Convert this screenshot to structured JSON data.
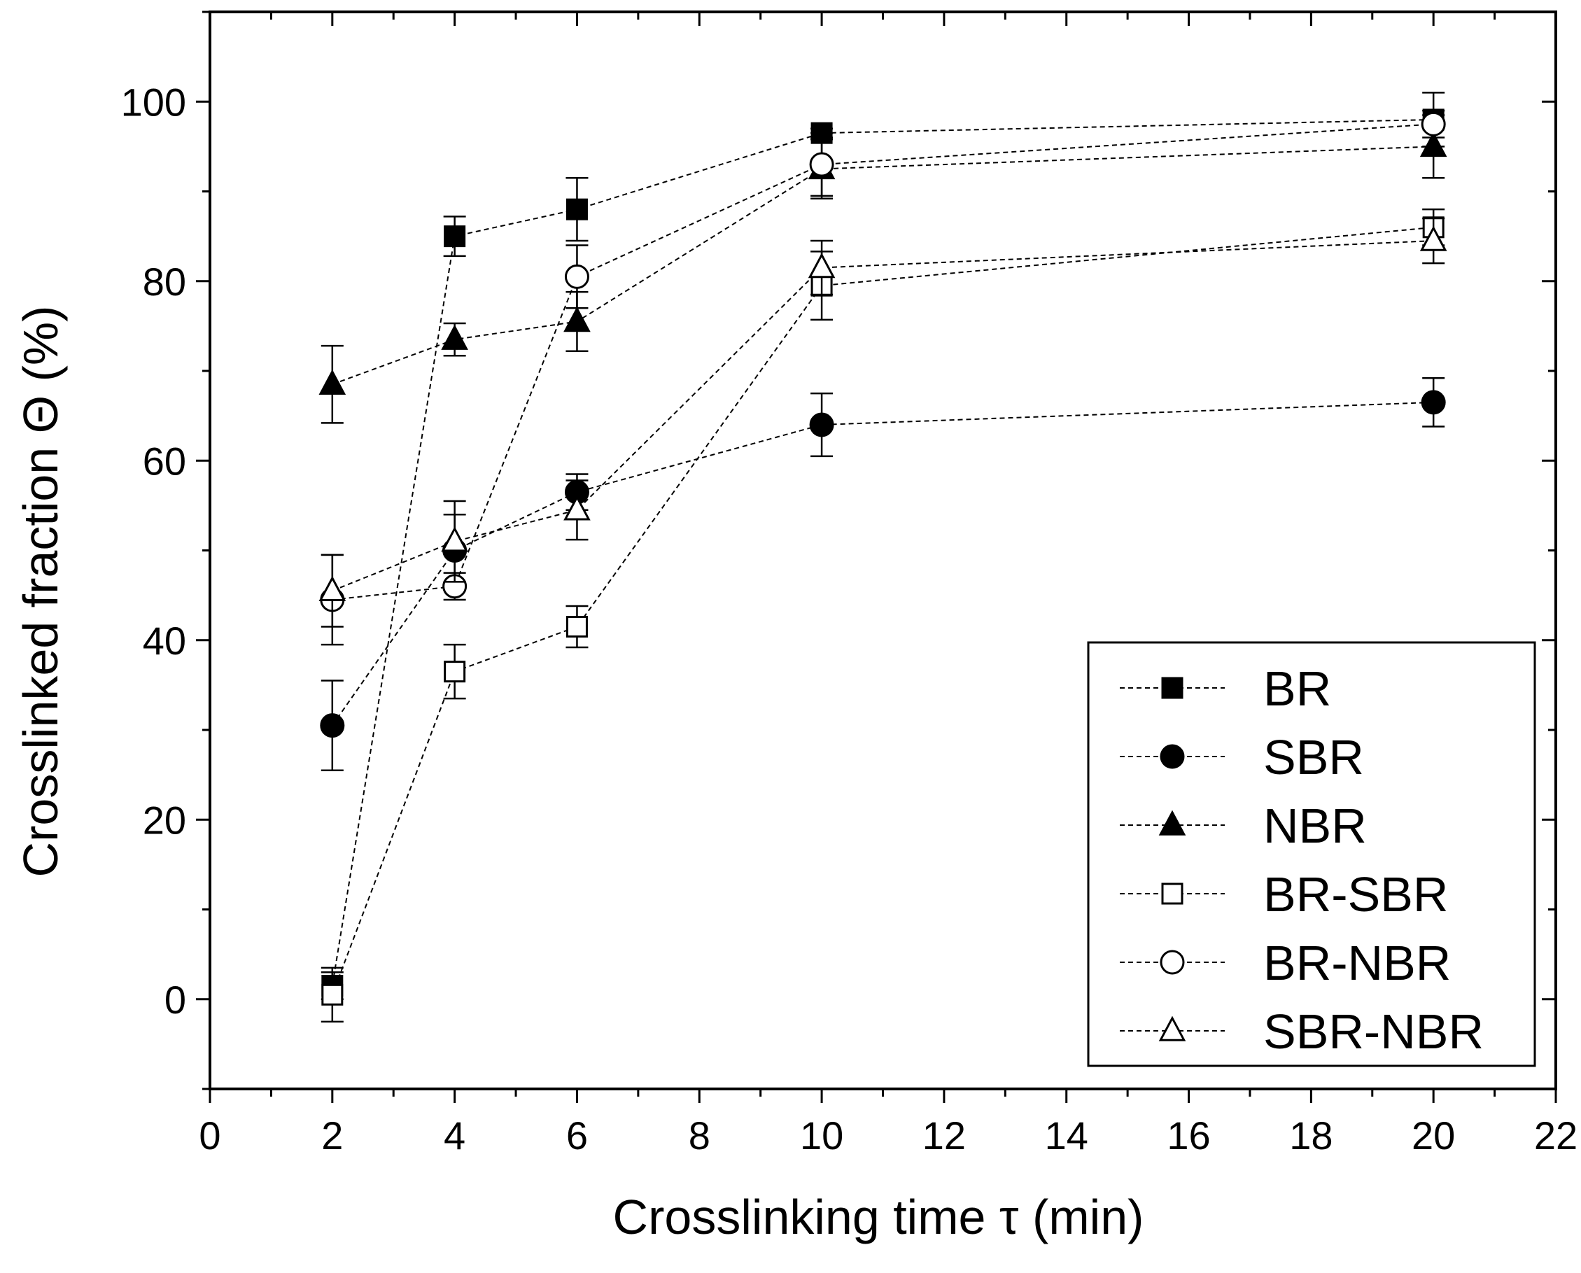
{
  "chart_data": {
    "type": "scatter",
    "title": "",
    "xlabel": "Crosslinking time τ (min)",
    "ylabel": "Crosslinked fraction Θ (%)",
    "xlim": [
      0,
      22
    ],
    "ylim": [
      -10,
      110
    ],
    "xticks": [
      0,
      2,
      4,
      6,
      8,
      10,
      12,
      14,
      16,
      18,
      20,
      22
    ],
    "yticks": [
      0,
      20,
      40,
      60,
      80,
      100
    ],
    "x": [
      2,
      4,
      6,
      10,
      20
    ],
    "legend_position": "bottom-right",
    "series": [
      {
        "name": "BR",
        "marker": "square",
        "filled": true,
        "values": [
          1.5,
          85,
          88,
          96.5,
          98
        ],
        "errors": [
          1.5,
          2.2,
          3.5,
          0.5,
          3
        ]
      },
      {
        "name": "SBR",
        "marker": "circle",
        "filled": true,
        "values": [
          30.5,
          50,
          56.5,
          64,
          66.5
        ],
        "errors": [
          5,
          4,
          2,
          3.5,
          2.7
        ]
      },
      {
        "name": "NBR",
        "marker": "triangle",
        "filled": true,
        "values": [
          68.5,
          73.5,
          75.5,
          92.5,
          95
        ],
        "errors": [
          4.3,
          1.8,
          3.3,
          3.3,
          3.5
        ]
      },
      {
        "name": "BR-SBR",
        "marker": "square",
        "filled": false,
        "values": [
          0.5,
          36.5,
          41.5,
          79.5,
          86
        ],
        "errors": [
          3,
          3,
          2.3,
          3.8,
          2
        ]
      },
      {
        "name": "BR-NBR",
        "marker": "circle",
        "filled": false,
        "values": [
          44.5,
          46,
          80.5,
          93,
          97.5
        ],
        "errors": [
          5,
          1.5,
          3.5,
          3.5,
          1.5
        ]
      },
      {
        "name": "SBR-NBR",
        "marker": "triangle",
        "filled": false,
        "values": [
          45.5,
          51,
          54.5,
          81.5,
          84.5
        ],
        "errors": [
          4,
          4.5,
          3.3,
          3,
          2.5
        ]
      }
    ]
  }
}
